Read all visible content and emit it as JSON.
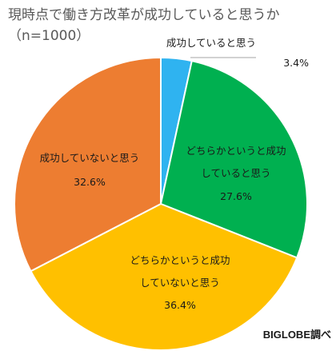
{
  "title_line1": "現時点で働き方改革が成功していると思うか",
  "title_line2": "（n=1000）",
  "source": "BIGLOBE調べ",
  "chart_data": {
    "type": "pie",
    "title": "現時点で働き方改革が成功していると思うか（n=1000）",
    "start": "12 o'clock",
    "direction": "clockwise",
    "unit": "%",
    "slices": [
      {
        "label": "成功していると思う",
        "value": 3.4,
        "value_text": "3.4%",
        "color": "#2fb3f0"
      },
      {
        "label": "どちらかというと成功していると思う",
        "value": 27.6,
        "value_text": "27.6%",
        "color": "#00b050"
      },
      {
        "label": "どちらかというと成功していないと思う",
        "value": 36.4,
        "value_text": "36.4%",
        "color": "#ffc000"
      },
      {
        "label": "成功していないと思う",
        "value": 32.6,
        "value_text": "32.6%",
        "color": "#ed7d31"
      }
    ]
  }
}
